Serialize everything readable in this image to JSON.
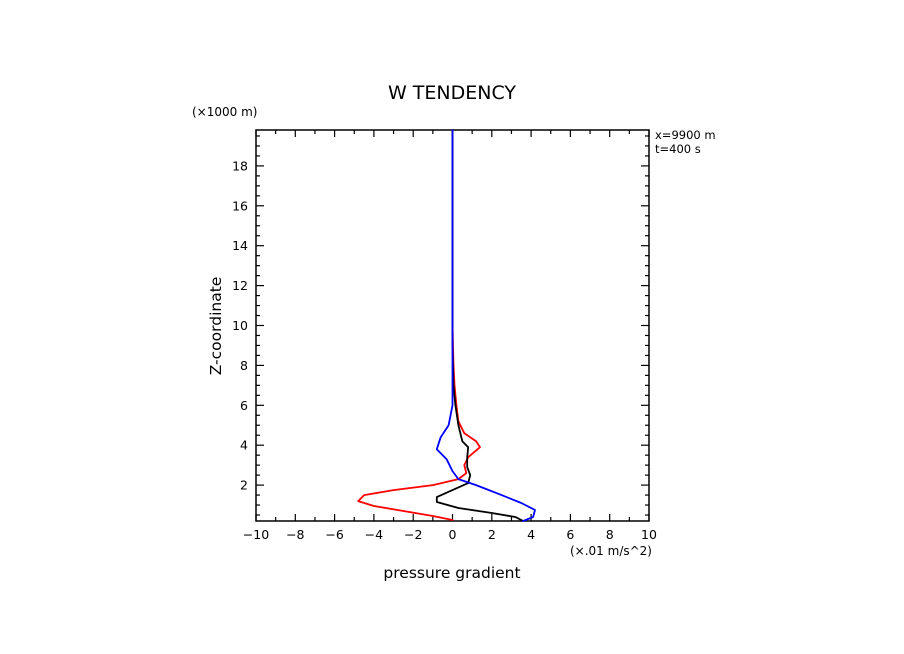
{
  "chart_data": {
    "type": "line",
    "title": "W TENDENCY",
    "xlabel": "pressure gradient",
    "x_unit": "(×.01 m/s^2)",
    "ylabel": "Z-coordinate",
    "y_unit": "(×1000 m)",
    "info_lines": [
      "x=9900 m",
      "t=400 s"
    ],
    "xlim": [
      -10,
      10
    ],
    "ylim": [
      0.2,
      19.8
    ],
    "x_ticks": [
      -10,
      -8,
      -6,
      -4,
      -2,
      0,
      2,
      4,
      6,
      8,
      10
    ],
    "x_tick_labels": [
      "−10",
      "−8",
      "−6",
      "−4",
      "−2",
      "0",
      "2",
      "4",
      "6",
      "8",
      "10"
    ],
    "y_ticks": [
      2,
      4,
      6,
      8,
      10,
      12,
      14,
      16,
      18
    ],
    "y_tick_labels": [
      "2",
      "4",
      "6",
      "8",
      "10",
      "12",
      "14",
      "16",
      "18"
    ],
    "grid": false,
    "series": [
      {
        "color": "#ff0000",
        "points": [
          [
            0.0,
            0.25
          ],
          [
            -1.0,
            0.45
          ],
          [
            -2.5,
            0.7
          ],
          [
            -4.0,
            0.95
          ],
          [
            -4.8,
            1.2
          ],
          [
            -4.5,
            1.5
          ],
          [
            -3.0,
            1.75
          ],
          [
            -1.0,
            2.0
          ],
          [
            0.3,
            2.3
          ],
          [
            0.7,
            2.6
          ],
          [
            0.6,
            3.0
          ],
          [
            0.8,
            3.4
          ],
          [
            1.4,
            3.9
          ],
          [
            1.2,
            4.2
          ],
          [
            0.6,
            4.6
          ],
          [
            0.3,
            5.2
          ],
          [
            0.2,
            6.0
          ],
          [
            0.1,
            7.0
          ],
          [
            0.05,
            8.0
          ],
          [
            0.0,
            10.0
          ],
          [
            0.0,
            14.0
          ],
          [
            0.0,
            19.8
          ]
        ]
      },
      {
        "color": "#000000",
        "points": [
          [
            3.6,
            0.2
          ],
          [
            3.2,
            0.4
          ],
          [
            2.0,
            0.6
          ],
          [
            0.3,
            0.85
          ],
          [
            -0.8,
            1.15
          ],
          [
            -0.8,
            1.4
          ],
          [
            0.0,
            1.75
          ],
          [
            0.8,
            2.1
          ],
          [
            0.9,
            2.5
          ],
          [
            0.75,
            2.9
          ],
          [
            0.75,
            3.4
          ],
          [
            0.8,
            3.9
          ],
          [
            0.5,
            4.2
          ],
          [
            0.3,
            5.0
          ],
          [
            0.15,
            6.0
          ],
          [
            0.05,
            7.0
          ],
          [
            0.0,
            9.0
          ],
          [
            0.0,
            13.0
          ],
          [
            0.0,
            19.8
          ]
        ]
      },
      {
        "color": "#0000ff",
        "points": [
          [
            3.6,
            0.2
          ],
          [
            4.1,
            0.4
          ],
          [
            4.2,
            0.75
          ],
          [
            3.5,
            1.1
          ],
          [
            2.5,
            1.5
          ],
          [
            1.2,
            2.0
          ],
          [
            0.3,
            2.3
          ],
          [
            0.0,
            2.7
          ],
          [
            -0.3,
            3.3
          ],
          [
            -0.8,
            3.8
          ],
          [
            -0.6,
            4.4
          ],
          [
            -0.2,
            5.0
          ],
          [
            0.0,
            6.0
          ],
          [
            0.0,
            8.0
          ],
          [
            0.0,
            12.0
          ],
          [
            0.0,
            19.8
          ]
        ]
      }
    ]
  }
}
